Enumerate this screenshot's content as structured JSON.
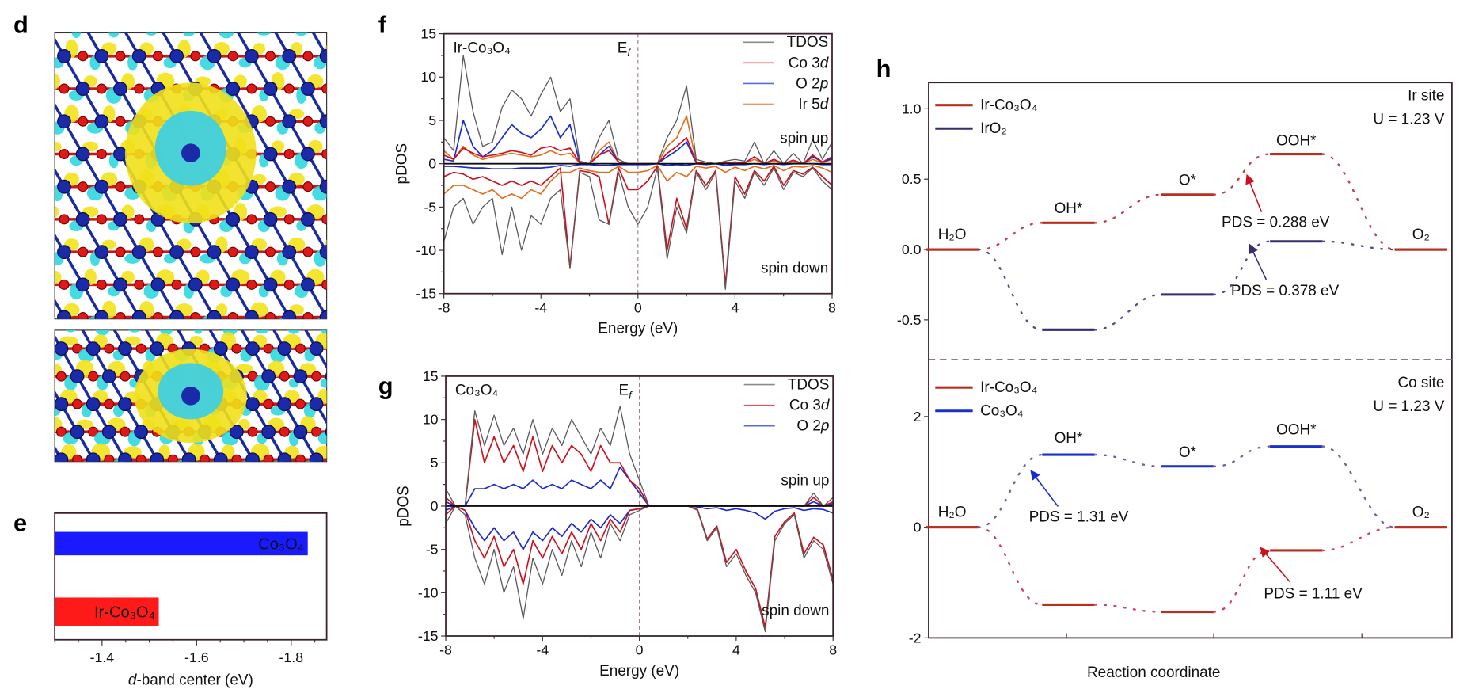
{
  "panels": {
    "d": {
      "label": "d"
    },
    "e": {
      "label": "e"
    },
    "f": {
      "label": "f"
    },
    "g": {
      "label": "g"
    },
    "h": {
      "label": "h"
    }
  },
  "colors": {
    "tdos": "#5a5a5a",
    "co3d": "#cc1020",
    "o2p": "#1a2ad0",
    "ir5d": "#e07020",
    "ir_co3o4": "#b83020",
    "iro2": "#3a2a70",
    "co3o4": "#1a30c8",
    "bar_blue": "#1a1aff",
    "bar_red": "#ff1a1a"
  },
  "chart_data": [
    {
      "id": "e",
      "type": "bar",
      "orientation": "horizontal",
      "categories": [
        "Co₃O₄",
        "Ir-Co₃O₄"
      ],
      "values": [
        -1.835,
        -1.52
      ],
      "xlabel_italic": "d",
      "xlabel_rest": "-band center (eV)",
      "xlim": [
        -1.3,
        -1.875
      ],
      "xticks": [
        -1.4,
        -1.6,
        -1.8
      ],
      "xtick_labels": [
        "-1.4",
        "-1.6",
        "-1.8"
      ]
    },
    {
      "id": "f",
      "type": "line",
      "title": "Ir-Co₃O₄",
      "fermi_main": "E",
      "fermi_sub": "f",
      "xlabel": "Energy (eV)",
      "ylabel": "pDOS",
      "xlim": [
        -8,
        8
      ],
      "ylim": [
        -15,
        15
      ],
      "xticks": [
        "-8",
        "-4",
        "0",
        "4",
        "8"
      ],
      "yticks": [
        "15",
        "10",
        "5",
        "0",
        "-5",
        "-10",
        "-15"
      ],
      "spin_up_label": "spin up",
      "spin_down_label": "spin down",
      "x_start": -8,
      "x_step": 0.4,
      "series": [
        {
          "name": "TDOS",
          "color_key": "tdos",
          "up": [
            3,
            1.5,
            12.5,
            6,
            2,
            2.5,
            6.5,
            8.5,
            7.5,
            5.5,
            8,
            10,
            6,
            7.5,
            0.3,
            0,
            3,
            5,
            0.5,
            0,
            0,
            0,
            0,
            3,
            5,
            9,
            0.5,
            0.2,
            0,
            0.3,
            0.5,
            0.3,
            2.5,
            0,
            1.5,
            0,
            1.2,
            0,
            2.8,
            0.5,
            2.5
          ],
          "down": [
            -9,
            -5,
            -4,
            -7,
            -5,
            -4,
            -10.5,
            -5,
            -10,
            -6,
            -7,
            -4,
            -3,
            -12,
            -1,
            -1.5,
            -6.5,
            -7,
            -1,
            -5,
            -7,
            -5,
            -0.5,
            -11,
            -5,
            -8,
            -1,
            -3,
            -1,
            -14.5,
            -2,
            -4,
            -1,
            -2.5,
            -0.5,
            -3,
            -1,
            -1.5,
            -0.5,
            -2,
            -3
          ]
        },
        {
          "name_main": "Co 3",
          "name_ital": "d",
          "name": "Co 3d",
          "color_key": "co3d",
          "up": [
            1,
            0.5,
            1.8,
            1.2,
            0.8,
            1,
            1.2,
            1.5,
            1.3,
            1,
            1.8,
            2,
            1.5,
            1.8,
            0.1,
            0,
            1,
            1.5,
            0.2,
            0,
            0,
            0,
            0,
            1.2,
            2,
            3,
            0.2,
            0,
            0,
            0.1,
            0.2,
            0.1,
            0.8,
            0,
            0.5,
            0,
            0.4,
            0,
            1,
            0.2,
            0.8
          ],
          "down": [
            -1.5,
            -1,
            -1.2,
            -1.8,
            -1.5,
            -2,
            -2.5,
            -2,
            -2.5,
            -2,
            -2.5,
            -1.5,
            -0.5,
            -12,
            -0.8,
            -1,
            -1.5,
            -7,
            -0.5,
            -3,
            -3,
            -2,
            -0.3,
            -10,
            -4,
            -7.5,
            -0.8,
            -2.5,
            -0.8,
            -14,
            -1.5,
            -3.5,
            -0.8,
            -2,
            -0.3,
            -2.5,
            -0.8,
            -1.2,
            -0.4,
            -1.5,
            -2.5
          ]
        },
        {
          "name_main": "O 2",
          "name_ital": "p",
          "name": "O 2p",
          "color_key": "o2p",
          "up": [
            0.5,
            0.3,
            5,
            2,
            0.8,
            1.5,
            3,
            4.5,
            3.5,
            3,
            4,
            5.5,
            3,
            4.5,
            0.1,
            0,
            1,
            2,
            0.2,
            0,
            0,
            0,
            0,
            0.8,
            1.5,
            2.5,
            0.1,
            0,
            0,
            0.1,
            0.2,
            0.1,
            0.8,
            0,
            0.5,
            0,
            0.4,
            0,
            0.8,
            0.2,
            0.6
          ],
          "down": [
            -0.3,
            -0.3,
            -0.4,
            -0.5,
            -0.5,
            -0.6,
            -0.6,
            -0.6,
            -0.5,
            -0.5,
            -0.5,
            -0.4,
            -0.2,
            -0.3,
            -0.1,
            -0.1,
            -0.2,
            -0.2,
            -0.1,
            -0.1,
            -0.1,
            -0.1,
            0,
            -0.2,
            -0.1,
            -0.2,
            0,
            -0.1,
            0,
            -0.2,
            -0.1,
            -0.1,
            0,
            -0.1,
            0,
            -0.1,
            0,
            0,
            0,
            -0.1,
            -0.1
          ]
        },
        {
          "name_main": "Ir 5",
          "name_ital": "d",
          "name": "Ir 5d",
          "color_key": "ir5d",
          "up": [
            1.5,
            0.5,
            2,
            1,
            0.5,
            0.8,
            1,
            1.2,
            1,
            0.8,
            1,
            1.5,
            1,
            1.2,
            0.1,
            0,
            1.5,
            2.5,
            0.2,
            0,
            0,
            0,
            0,
            2,
            3,
            5.5,
            0.2,
            0,
            0,
            0.1,
            0.1,
            0.1,
            0.5,
            0,
            0.3,
            0,
            0.2,
            0,
            0.5,
            0.1,
            0.5
          ],
          "down": [
            -3.5,
            -2.5,
            -2.5,
            -3,
            -3.5,
            -3,
            -4,
            -3.5,
            -4,
            -3,
            -3.5,
            -2,
            -1,
            -1,
            -0.5,
            -0.8,
            -1,
            -1,
            -0.3,
            -1,
            -1,
            -0.8,
            -0.2,
            -2,
            -1,
            -1.5,
            -0.3,
            -0.5,
            -0.3,
            -1,
            -0.4,
            -0.8,
            -0.3,
            -0.6,
            -0.2,
            -0.8,
            -0.3,
            -0.4,
            -0.2,
            -0.5,
            -1
          ]
        }
      ]
    },
    {
      "id": "g",
      "type": "line",
      "title": "Co₃O₄",
      "fermi_main": "E",
      "fermi_sub": "f",
      "xlabel": "Energy (eV)",
      "ylabel": "pDOS",
      "xlim": [
        -8,
        8
      ],
      "ylim": [
        -15,
        15
      ],
      "xticks": [
        "-8",
        "-4",
        "0",
        "4",
        "8"
      ],
      "yticks": [
        "15",
        "10",
        "5",
        "0",
        "-5",
        "-10",
        "-15"
      ],
      "spin_up_label": "spin up",
      "spin_down_label": "spin down",
      "x_start": -8,
      "x_step": 0.4,
      "series": [
        {
          "name": "TDOS",
          "color_key": "tdos",
          "up": [
            2,
            0,
            0,
            11,
            7,
            10.5,
            7,
            9,
            6,
            10,
            6,
            9,
            7,
            10,
            8,
            6,
            9,
            7,
            11.5,
            6,
            3,
            0,
            0,
            0,
            0,
            0,
            0,
            0,
            0,
            0,
            0,
            0,
            0,
            0,
            0,
            0,
            0,
            0,
            1.5,
            0,
            1
          ],
          "down": [
            -2,
            0,
            -1,
            -6,
            -9,
            -5,
            -10,
            -7,
            -13,
            -6,
            -9,
            -5,
            -8,
            -4,
            -7,
            -3,
            -6,
            -2,
            -4,
            -1,
            -0.5,
            0,
            0,
            0,
            0,
            0,
            -0.5,
            -4,
            -2.5,
            -7,
            -5.5,
            -8,
            -10,
            -14.5,
            -4,
            -2,
            -1,
            -6,
            -4,
            -5,
            -9
          ]
        },
        {
          "name_main": "Co 3",
          "name_ital": "d",
          "name": "Co 3d",
          "color_key": "co3d",
          "up": [
            1,
            0,
            0,
            10,
            5,
            8,
            5,
            7,
            4,
            8,
            4,
            7,
            5,
            7,
            6,
            4,
            7,
            5,
            5,
            3,
            2,
            0,
            0,
            0,
            0,
            0,
            0,
            0,
            0,
            0,
            0,
            0,
            0,
            0,
            0,
            0,
            0,
            0,
            1,
            0,
            0.5
          ],
          "down": [
            -1,
            0,
            -0.5,
            -4,
            -6,
            -3.5,
            -7,
            -5,
            -9,
            -4,
            -6,
            -3.5,
            -5.5,
            -3,
            -5,
            -2,
            -4,
            -1.5,
            -3,
            -0.5,
            -0.3,
            0,
            0,
            0,
            0,
            0,
            -0.4,
            -3.8,
            -2.3,
            -6.5,
            -5,
            -7.5,
            -9.5,
            -14,
            -3.5,
            -1.8,
            -0.8,
            -5.5,
            -3.6,
            -4.5,
            -8.5
          ]
        },
        {
          "name_main": "O 2",
          "name_ital": "p",
          "name": "O 2p",
          "color_key": "o2p",
          "up": [
            0.5,
            0,
            0,
            2,
            2,
            2.5,
            2,
            2.5,
            2,
            3,
            2,
            2.5,
            2,
            3,
            2.5,
            2,
            3,
            2,
            4.5,
            3,
            1.5,
            0,
            0,
            0,
            0,
            0,
            0,
            0,
            0,
            0,
            0,
            0,
            0,
            0,
            0,
            0,
            0,
            0,
            0.5,
            0,
            0.3
          ],
          "down": [
            -0.5,
            0,
            -0.5,
            -2.5,
            -4,
            -2.5,
            -4,
            -3,
            -5,
            -3,
            -4,
            -2.5,
            -3.5,
            -2,
            -3,
            -1.5,
            -2.5,
            -1,
            -2,
            -0.5,
            -0.3,
            0,
            0,
            0,
            0,
            0,
            -0.1,
            -0.3,
            -0.2,
            -0.5,
            -0.3,
            -0.5,
            -0.8,
            -1.5,
            -0.6,
            -0.3,
            -0.2,
            -0.5,
            -0.3,
            -0.4,
            -0.8
          ]
        }
      ]
    },
    {
      "id": "h",
      "type": "line",
      "subtype": "free-energy-diagram",
      "xlabel": "Reaction coordinate",
      "steps": [
        "H₂O",
        "OH*",
        "O*",
        "OOH*",
        "O₂"
      ],
      "subplots": [
        {
          "site_label": "Ir site",
          "potential_label": "U = 1.23 V",
          "yticks": [
            1.0,
            0.5,
            0.0,
            -0.5
          ],
          "ytick_labels": [
            "1.0",
            "0.5",
            "0.0",
            "-0.5"
          ],
          "series": [
            {
              "name": "Ir-Co₃O₄",
              "color_key": "ir_co3o4",
              "values": [
                0,
                0.19,
                0.39,
                0.678,
                0
              ]
            },
            {
              "name": "IrO₂",
              "color_key": "iro2",
              "values": [
                0,
                -0.57,
                -0.32,
                0.058,
                0
              ]
            }
          ],
          "annotations": [
            {
              "text": "PDS = 0.288 eV",
              "color_key": "co3d"
            },
            {
              "text": "PDS = 0.378 eV",
              "color_key": "iro2"
            }
          ]
        },
        {
          "site_label": "Co site",
          "potential_label": "U = 1.23 V",
          "yticks": [
            2,
            0,
            -2
          ],
          "ytick_labels": [
            "2",
            "0",
            "-2"
          ],
          "series": [
            {
              "name": "Ir-Co₃O₄",
              "color_key": "ir_co3o4",
              "values": [
                0,
                -1.4,
                -1.53,
                -0.42,
                0
              ]
            },
            {
              "name": "Co₃O₄",
              "color_key": "co3o4",
              "values": [
                0,
                1.31,
                1.1,
                1.46,
                0
              ]
            }
          ],
          "annotations": [
            {
              "text": "PDS = 1.31 eV",
              "color_key": "o2p"
            },
            {
              "text": "PDS = 1.11 eV",
              "color_key": "co3d"
            }
          ]
        }
      ]
    }
  ]
}
